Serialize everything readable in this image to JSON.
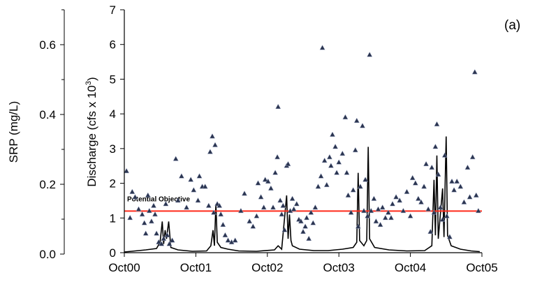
{
  "panel_label": "(a)",
  "chart_data": {
    "type": "scatter",
    "title": "",
    "xlabel": "",
    "x_ticks": [
      "Oct00",
      "Oct01",
      "Oct02",
      "Oct03",
      "Oct04",
      "Oct05"
    ],
    "x_range_years": [
      2000.75,
      2005.75
    ],
    "left_axis": {
      "label": "SRP (mg/L)",
      "ylim": [
        0,
        0.7
      ],
      "ticks": [
        "0.0",
        "0.2",
        "0.4",
        "0.6"
      ]
    },
    "right_axis": {
      "label_main": "Discharge (cfs x 10",
      "label_sup": "3",
      "label_end": ")",
      "ylim": [
        0,
        7
      ],
      "ticks": [
        "0",
        "1",
        "2",
        "3",
        "4",
        "5",
        "6",
        "7"
      ]
    },
    "objective": {
      "label": "Potential Objective",
      "value_discharge_axis": 1.2,
      "color": "#ff2a1a"
    },
    "colors": {
      "srp_marker": "#2b3550",
      "discharge_line": "#000000"
    },
    "series": [
      {
        "name": "SRP",
        "kind": "scatter",
        "points": [
          [
            2000.78,
            2.35
          ],
          [
            2000.83,
            1.0
          ],
          [
            2000.86,
            1.75
          ],
          [
            2000.9,
            1.6
          ],
          [
            2000.95,
            1.25
          ],
          [
            2001.0,
            1.1
          ],
          [
            2001.03,
            0.85
          ],
          [
            2001.05,
            0.55
          ],
          [
            2001.08,
            1.65
          ],
          [
            2001.1,
            1.2
          ],
          [
            2001.13,
            0.9
          ],
          [
            2001.16,
            1.35
          ],
          [
            2001.18,
            1.1
          ],
          [
            2001.2,
            0.55
          ],
          [
            2001.23,
            0.3
          ],
          [
            2001.27,
            0.25
          ],
          [
            2001.3,
            0.4
          ],
          [
            2001.33,
            1.4
          ],
          [
            2001.35,
            0.5
          ],
          [
            2001.38,
            0.25
          ],
          [
            2001.42,
            0.35
          ],
          [
            2001.47,
            2.7
          ],
          [
            2001.5,
            1.5
          ],
          [
            2001.55,
            2.2
          ],
          [
            2001.62,
            1.3
          ],
          [
            2001.68,
            2.1
          ],
          [
            2001.72,
            1.8
          ],
          [
            2001.78,
            1.5
          ],
          [
            2001.8,
            2.2
          ],
          [
            2001.84,
            1.9
          ],
          [
            2001.88,
            1.9
          ],
          [
            2001.93,
            1.35
          ],
          [
            2001.95,
            2.9
          ],
          [
            2001.98,
            3.35
          ],
          [
            2002.0,
            1.15
          ],
          [
            2002.02,
            3.1
          ],
          [
            2002.05,
            1.4
          ],
          [
            2002.08,
            1.35
          ],
          [
            2002.1,
            1.1
          ],
          [
            2002.13,
            0.8
          ],
          [
            2002.16,
            0.5
          ],
          [
            2002.2,
            0.35
          ],
          [
            2002.25,
            0.3
          ],
          [
            2002.3,
            0.35
          ],
          [
            2002.38,
            1.2
          ],
          [
            2002.43,
            1.7
          ],
          [
            2002.5,
            0.9
          ],
          [
            2002.55,
            0.75
          ],
          [
            2002.6,
            1.05
          ],
          [
            2002.62,
            2.0
          ],
          [
            2002.66,
            1.6
          ],
          [
            2002.7,
            1.3
          ],
          [
            2002.72,
            2.1
          ],
          [
            2002.76,
            2.05
          ],
          [
            2002.8,
            1.85
          ],
          [
            2002.83,
            1.3
          ],
          [
            2002.86,
            2.3
          ],
          [
            2002.89,
            2.75
          ],
          [
            2002.9,
            4.2
          ],
          [
            2002.93,
            1.5
          ],
          [
            2002.95,
            1.1
          ],
          [
            2002.97,
            1.35
          ],
          [
            2002.99,
            0.65
          ],
          [
            2003.02,
            2.5
          ],
          [
            2003.04,
            2.55
          ],
          [
            2003.07,
            1.2
          ],
          [
            2003.1,
            1.55
          ],
          [
            2003.12,
            1.25
          ],
          [
            2003.16,
            1.4
          ],
          [
            2003.19,
            0.95
          ],
          [
            2003.22,
            0.9
          ],
          [
            2003.25,
            0.6
          ],
          [
            2003.28,
            0.75
          ],
          [
            2003.3,
            1.0
          ],
          [
            2003.33,
            0.4
          ],
          [
            2003.36,
            1.15
          ],
          [
            2003.39,
            0.85
          ],
          [
            2003.42,
            1.3
          ],
          [
            2003.46,
            1.9
          ],
          [
            2003.5,
            2.2
          ],
          [
            2003.52,
            5.9
          ],
          [
            2003.55,
            2.65
          ],
          [
            2003.58,
            1.95
          ],
          [
            2003.62,
            2.75
          ],
          [
            2003.64,
            2.5
          ],
          [
            2003.66,
            3.4
          ],
          [
            2003.7,
            3.05
          ],
          [
            2003.72,
            2.3
          ],
          [
            2003.75,
            2.6
          ],
          [
            2003.8,
            2.85
          ],
          [
            2003.84,
            3.9
          ],
          [
            2003.86,
            2.3
          ],
          [
            2003.88,
            1.65
          ],
          [
            2003.92,
            1.15
          ],
          [
            2003.95,
            1.8
          ],
          [
            2003.98,
            2.95
          ],
          [
            2004.0,
            3.8
          ],
          [
            2004.02,
            0.75
          ],
          [
            2004.05,
            1.9
          ],
          [
            2004.08,
            3.65
          ],
          [
            2004.1,
            1.2
          ],
          [
            2004.12,
            2.1
          ],
          [
            2004.15,
            1.05
          ],
          [
            2004.18,
            5.7
          ],
          [
            2004.2,
            1.2
          ],
          [
            2004.24,
            1.55
          ],
          [
            2004.27,
            0.9
          ],
          [
            2004.3,
            1.25
          ],
          [
            2004.33,
            0.8
          ],
          [
            2004.36,
            1.3
          ],
          [
            2004.4,
            1.0
          ],
          [
            2004.44,
            1.15
          ],
          [
            2004.48,
            1.0
          ],
          [
            2004.5,
            1.4
          ],
          [
            2004.55,
            1.6
          ],
          [
            2004.6,
            1.5
          ],
          [
            2004.65,
            1.2
          ],
          [
            2004.7,
            1.75
          ],
          [
            2004.75,
            1.05
          ],
          [
            2004.78,
            2.15
          ],
          [
            2004.82,
            2.0
          ],
          [
            2004.86,
            1.55
          ],
          [
            2004.9,
            1.45
          ],
          [
            2004.94,
            1.9
          ],
          [
            2004.97,
            2.55
          ],
          [
            2005.0,
            1.25
          ],
          [
            2005.03,
            0.6
          ],
          [
            2005.05,
            2.45
          ],
          [
            2005.08,
            1.15
          ],
          [
            2005.1,
            3.05
          ],
          [
            2005.12,
            3.7
          ],
          [
            2005.14,
            2.25
          ],
          [
            2005.17,
            1.3
          ],
          [
            2005.2,
            0.95
          ],
          [
            2005.23,
            2.8
          ],
          [
            2005.26,
            1.05
          ],
          [
            2005.3,
            0.45
          ],
          [
            2005.33,
            2.05
          ],
          [
            2005.36,
            1.8
          ],
          [
            2005.4,
            2.05
          ],
          [
            2005.45,
            1.9
          ],
          [
            2005.5,
            1.45
          ],
          [
            2005.55,
            2.45
          ],
          [
            2005.58,
            1.6
          ],
          [
            2005.62,
            2.75
          ],
          [
            2005.65,
            5.2
          ],
          [
            2005.67,
            1.65
          ],
          [
            2005.7,
            1.2
          ]
        ]
      },
      {
        "name": "Discharge",
        "kind": "line",
        "points": [
          [
            2000.75,
            0.02
          ],
          [
            2000.9,
            0.05
          ],
          [
            2001.05,
            0.08
          ],
          [
            2001.2,
            0.12
          ],
          [
            2001.25,
            0.3
          ],
          [
            2001.28,
            0.9
          ],
          [
            2001.3,
            0.25
          ],
          [
            2001.32,
            0.65
          ],
          [
            2001.34,
            0.4
          ],
          [
            2001.37,
            0.9
          ],
          [
            2001.4,
            0.15
          ],
          [
            2001.5,
            0.08
          ],
          [
            2001.7,
            0.04
          ],
          [
            2001.9,
            0.05
          ],
          [
            2001.96,
            0.2
          ],
          [
            2001.99,
            0.65
          ],
          [
            2002.01,
            0.2
          ],
          [
            2002.03,
            1.4
          ],
          [
            2002.05,
            0.3
          ],
          [
            2002.1,
            0.15
          ],
          [
            2002.2,
            0.1
          ],
          [
            2002.35,
            0.05
          ],
          [
            2002.6,
            0.04
          ],
          [
            2002.85,
            0.08
          ],
          [
            2002.9,
            0.2
          ],
          [
            2002.95,
            0.1
          ],
          [
            2003.02,
            1.65
          ],
          [
            2003.04,
            0.4
          ],
          [
            2003.06,
            1.1
          ],
          [
            2003.08,
            0.35
          ],
          [
            2003.1,
            0.2
          ],
          [
            2003.2,
            0.1
          ],
          [
            2003.4,
            0.06
          ],
          [
            2003.6,
            0.06
          ],
          [
            2003.8,
            0.1
          ],
          [
            2003.95,
            0.15
          ],
          [
            2004.0,
            0.3
          ],
          [
            2004.02,
            2.3
          ],
          [
            2004.04,
            0.35
          ],
          [
            2004.1,
            0.2
          ],
          [
            2004.14,
            0.35
          ],
          [
            2004.16,
            3.05
          ],
          [
            2004.18,
            0.4
          ],
          [
            2004.25,
            0.15
          ],
          [
            2004.45,
            0.08
          ],
          [
            2004.7,
            0.05
          ],
          [
            2004.95,
            0.06
          ],
          [
            2005.05,
            0.2
          ],
          [
            2005.08,
            2.1
          ],
          [
            2005.1,
            0.5
          ],
          [
            2005.12,
            2.8
          ],
          [
            2005.14,
            0.4
          ],
          [
            2005.2,
            1.85
          ],
          [
            2005.22,
            0.45
          ],
          [
            2005.25,
            3.35
          ],
          [
            2005.27,
            0.5
          ],
          [
            2005.32,
            0.2
          ],
          [
            2005.45,
            0.1
          ],
          [
            2005.6,
            0.05
          ],
          [
            2005.72,
            0.03
          ]
        ]
      }
    ]
  }
}
